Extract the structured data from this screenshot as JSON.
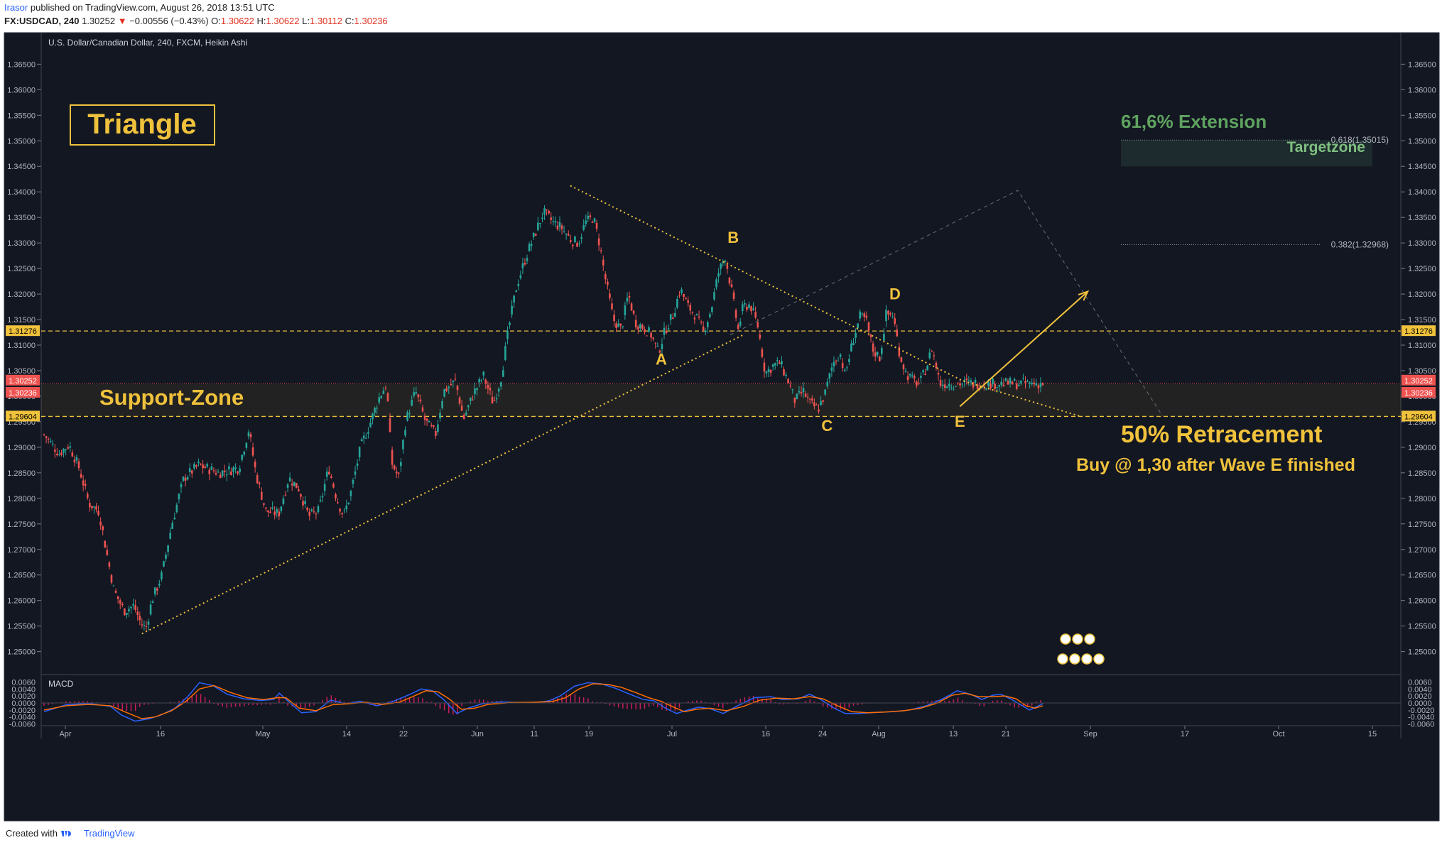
{
  "header": {
    "author": "Irasor",
    "published_text": "published on TradingView.com, August 26, 2018 13:51 UTC",
    "symbol": "FX:USDCAD, 240",
    "last": "1.30252",
    "change": "−0.00556 (−0.43%)",
    "ohlc": {
      "o_label": "O:",
      "o": "1.30622",
      "h_label": "H:",
      "h": "1.30622",
      "l_label": "L:",
      "l": "1.30112",
      "c_label": "C:",
      "c": "1.30236"
    }
  },
  "chart_data": {
    "type": "candlestick",
    "subtitle": "U.S. Dollar/Canadian Dollar, 240, FXCM, Heikin Ashi",
    "x_labels": [
      "Apr",
      "16",
      "May",
      "14",
      "22",
      "Jun",
      "11",
      "19",
      "Jul",
      "16",
      "24",
      "Aug",
      "13",
      "21",
      "Sep",
      "17",
      "Oct",
      "15"
    ],
    "y_ticks": [
      "1.36500",
      "1.36000",
      "1.35500",
      "1.35000",
      "1.34500",
      "1.34000",
      "1.33500",
      "1.33000",
      "1.32500",
      "1.32000",
      "1.31500",
      "1.31000",
      "1.30500",
      "1.30000",
      "1.29500",
      "1.29000",
      "1.28500",
      "1.28000",
      "1.27500",
      "1.27000",
      "1.26500",
      "1.26000",
      "1.25500",
      "1.25000"
    ],
    "ylim": [
      1.2455,
      1.3695
    ],
    "price_badges": {
      "resistance": "1.31276",
      "last": "1.30252",
      "close": "1.30236",
      "support": "1.29604"
    },
    "fib_levels": [
      {
        "label": "0.618(1.35015)",
        "value": 1.35015
      },
      {
        "label": "0.382(1.32968)",
        "value": 1.32968
      }
    ],
    "path_points": [
      [
        0,
        1.2925
      ],
      [
        0.015,
        1.2888
      ],
      [
        0.025,
        1.2905
      ],
      [
        0.035,
        1.286
      ],
      [
        0.045,
        1.279
      ],
      [
        0.055,
        1.2775
      ],
      [
        0.062,
        1.27
      ],
      [
        0.07,
        1.262
      ],
      [
        0.08,
        1.258
      ],
      [
        0.09,
        1.259
      ],
      [
        0.097,
        1.2555
      ],
      [
        0.102,
        1.2545
      ],
      [
        0.108,
        1.26
      ],
      [
        0.118,
        1.265
      ],
      [
        0.128,
        1.275
      ],
      [
        0.14,
        1.284
      ],
      [
        0.155,
        1.2865
      ],
      [
        0.175,
        1.285
      ],
      [
        0.195,
        1.286
      ],
      [
        0.205,
        1.2935
      ],
      [
        0.212,
        1.285
      ],
      [
        0.222,
        1.2775
      ],
      [
        0.235,
        1.277
      ],
      [
        0.245,
        1.284
      ],
      [
        0.255,
        1.282
      ],
      [
        0.265,
        1.2765
      ],
      [
        0.275,
        1.2775
      ],
      [
        0.285,
        1.286
      ],
      [
        0.293,
        1.28
      ],
      [
        0.3,
        1.2765
      ],
      [
        0.307,
        1.281
      ],
      [
        0.317,
        1.29
      ],
      [
        0.327,
        1.295
      ],
      [
        0.335,
        1.2995
      ],
      [
        0.343,
        1.3025
      ],
      [
        0.348,
        1.287
      ],
      [
        0.355,
        1.284
      ],
      [
        0.362,
        1.295
      ],
      [
        0.372,
        1.301
      ],
      [
        0.382,
        1.295
      ],
      [
        0.392,
        1.2925
      ],
      [
        0.4,
        1.301
      ],
      [
        0.412,
        1.303
      ],
      [
        0.42,
        1.2955
      ],
      [
        0.43,
        1.3005
      ],
      [
        0.44,
        1.304
      ],
      [
        0.45,
        1.2985
      ],
      [
        0.458,
        1.304
      ],
      [
        0.465,
        1.313
      ],
      [
        0.473,
        1.3215
      ],
      [
        0.482,
        1.327
      ],
      [
        0.492,
        1.332
      ],
      [
        0.5,
        1.336
      ],
      [
        0.51,
        1.334
      ],
      [
        0.518,
        1.333
      ],
      [
        0.528,
        1.3305
      ],
      [
        0.535,
        1.33
      ],
      [
        0.542,
        1.334
      ],
      [
        0.55,
        1.335
      ],
      [
        0.556,
        1.33
      ],
      [
        0.562,
        1.323
      ],
      [
        0.57,
        1.315
      ],
      [
        0.578,
        1.313
      ],
      [
        0.585,
        1.32
      ],
      [
        0.592,
        1.3145
      ],
      [
        0.6,
        1.3135
      ],
      [
        0.608,
        1.312
      ],
      [
        0.615,
        1.3085
      ],
      [
        0.622,
        1.313
      ],
      [
        0.63,
        1.316
      ],
      [
        0.637,
        1.321
      ],
      [
        0.645,
        1.3175
      ],
      [
        0.652,
        1.316
      ],
      [
        0.66,
        1.3125
      ],
      [
        0.668,
        1.317
      ],
      [
        0.675,
        1.324
      ],
      [
        0.682,
        1.3275
      ],
      [
        0.688,
        1.321
      ],
      [
        0.695,
        1.313
      ],
      [
        0.7,
        1.3175
      ],
      [
        0.707,
        1.318
      ],
      [
        0.715,
        1.3135
      ],
      [
        0.722,
        1.3045
      ],
      [
        0.73,
        1.306
      ],
      [
        0.737,
        1.3065
      ],
      [
        0.745,
        1.303
      ],
      [
        0.752,
        1.299
      ],
      [
        0.76,
        1.301
      ],
      [
        0.767,
        1.2985
      ],
      [
        0.775,
        1.2975
      ],
      [
        0.782,
        1.3005
      ],
      [
        0.79,
        1.3065
      ],
      [
        0.797,
        1.3085
      ],
      [
        0.802,
        1.304
      ],
      [
        0.81,
        1.311
      ],
      [
        0.817,
        1.3155
      ],
      [
        0.823,
        1.315
      ],
      [
        0.83,
        1.309
      ],
      [
        0.837,
        1.3075
      ],
      [
        0.843,
        1.316
      ],
      [
        0.85,
        1.316
      ],
      [
        0.857,
        1.308
      ],
      [
        0.863,
        1.3045
      ],
      [
        0.87,
        1.303
      ],
      [
        0.877,
        1.3025
      ],
      [
        0.884,
        1.306
      ],
      [
        0.889,
        1.3095
      ],
      [
        0.893,
        1.306
      ],
      [
        0.897,
        1.3025
      ]
    ],
    "annotations": {
      "title_box": "Triangle",
      "support_zone": "Support-Zone",
      "extension": "61,6% Extension",
      "targetzone": "Targetzone",
      "retracement": "50% Retracement",
      "buy_note": "Buy @ 1,30 after Wave E finished",
      "waves": [
        {
          "label": "A",
          "x": 0.618,
          "y": 1.3062
        },
        {
          "label": "B",
          "x": 0.69,
          "y": 1.33
        },
        {
          "label": "C",
          "x": 0.784,
          "y": 1.2932
        },
        {
          "label": "D",
          "x": 0.852,
          "y": 1.319
        },
        {
          "label": "E",
          "x": 0.917,
          "y": 1.294
        }
      ],
      "triangle_lines": {
        "lower": [
          [
            0.098,
            1.2535
          ],
          [
            0.7,
            1.312
          ]
        ],
        "upper": [
          [
            0.527,
            1.3412
          ],
          [
            0.92,
            1.303
          ],
          [
            1.037,
            1.2961
          ]
        ]
      },
      "projection": {
        "from": [
          0.687,
          1.312
        ],
        "peak": [
          0.975,
          1.3403
        ],
        "to": [
          1.12,
          1.2961
        ]
      },
      "arrow": {
        "from": [
          0.917,
          1.298
        ],
        "to": [
          1.045,
          1.3205
        ]
      }
    },
    "macd": {
      "label": "MACD",
      "y_ticks": [
        "0.0060",
        "0.0040",
        "0.0020",
        "0.0000",
        "-0.0020",
        "-0.0040",
        "-0.0060"
      ],
      "ylim": [
        -0.0065,
        0.0065
      ],
      "macd_points": [
        [
          0,
          -0.0025
        ],
        [
          0.02,
          -0.0005
        ],
        [
          0.04,
          -0.0001
        ],
        [
          0.06,
          -0.001
        ],
        [
          0.07,
          -0.0035
        ],
        [
          0.082,
          -0.0052
        ],
        [
          0.095,
          -0.0045
        ],
        [
          0.105,
          -0.0035
        ],
        [
          0.118,
          -0.0015
        ],
        [
          0.13,
          0.002
        ],
        [
          0.14,
          0.0058
        ],
        [
          0.152,
          0.005
        ],
        [
          0.165,
          0.0025
        ],
        [
          0.18,
          0.0012
        ],
        [
          0.195,
          0.0007
        ],
        [
          0.207,
          0.001
        ],
        [
          0.212,
          0.0028
        ],
        [
          0.22,
          0.0005
        ],
        [
          0.232,
          -0.0028
        ],
        [
          0.245,
          -0.0025
        ],
        [
          0.258,
          0.0008
        ],
        [
          0.272,
          -0.0002
        ],
        [
          0.285,
          0.0005
        ],
        [
          0.3,
          -0.0008
        ],
        [
          0.315,
          0.0005
        ],
        [
          0.33,
          0.0025
        ],
        [
          0.34,
          0.004
        ],
        [
          0.35,
          0.0035
        ],
        [
          0.36,
          0.001
        ],
        [
          0.372,
          -0.003
        ],
        [
          0.382,
          -0.0015
        ],
        [
          0.395,
          -0.0002
        ],
        [
          0.412,
          0.0003
        ],
        [
          0.43,
          0.0001
        ],
        [
          0.445,
          0.0002
        ],
        [
          0.455,
          0.0006
        ],
        [
          0.465,
          0.002
        ],
        [
          0.478,
          0.0048
        ],
        [
          0.49,
          0.0058
        ],
        [
          0.502,
          0.0055
        ],
        [
          0.515,
          0.0042
        ],
        [
          0.528,
          0.0025
        ],
        [
          0.54,
          0.001
        ],
        [
          0.55,
          0.0006
        ],
        [
          0.56,
          -0.0015
        ],
        [
          0.57,
          -0.003
        ],
        [
          0.58,
          -0.002
        ],
        [
          0.59,
          -0.0012
        ],
        [
          0.6,
          -0.0016
        ],
        [
          0.612,
          -0.003
        ],
        [
          0.625,
          -0.0008
        ],
        [
          0.64,
          0.0015
        ],
        [
          0.655,
          0.0018
        ],
        [
          0.665,
          0.001
        ],
        [
          0.68,
          0.0012
        ],
        [
          0.69,
          0.0025
        ],
        [
          0.7,
          0.001
        ],
        [
          0.712,
          -0.0015
        ],
        [
          0.722,
          -0.003
        ],
        [
          0.735,
          -0.003
        ],
        [
          0.75,
          -0.0027
        ],
        [
          0.765,
          -0.0025
        ],
        [
          0.78,
          -0.002
        ],
        [
          0.795,
          -0.0008
        ],
        [
          0.81,
          0.0012
        ],
        [
          0.823,
          0.0035
        ],
        [
          0.835,
          0.0025
        ],
        [
          0.845,
          0.001
        ],
        [
          0.855,
          0.0022
        ],
        [
          0.862,
          0.0025
        ],
        [
          0.872,
          0.001
        ],
        [
          0.88,
          -0.0005
        ],
        [
          0.888,
          -0.002
        ],
        [
          0.895,
          -0.001
        ],
        [
          0.9,
          -0.0002
        ]
      ],
      "signal_points": [
        [
          0,
          -0.002
        ],
        [
          0.02,
          -0.0008
        ],
        [
          0.04,
          -0.0004
        ],
        [
          0.06,
          -0.0008
        ],
        [
          0.075,
          -0.0028
        ],
        [
          0.088,
          -0.0045
        ],
        [
          0.1,
          -0.004
        ],
        [
          0.115,
          -0.0022
        ],
        [
          0.128,
          0.0005
        ],
        [
          0.14,
          0.004
        ],
        [
          0.153,
          0.005
        ],
        [
          0.168,
          0.003
        ],
        [
          0.183,
          0.0015
        ],
        [
          0.198,
          0.001
        ],
        [
          0.21,
          0.0015
        ],
        [
          0.218,
          0.0015
        ],
        [
          0.23,
          -0.0015
        ],
        [
          0.245,
          -0.0022
        ],
        [
          0.26,
          -0.0005
        ],
        [
          0.275,
          -0.0002
        ],
        [
          0.29,
          0.0002
        ],
        [
          0.305,
          -0.0004
        ],
        [
          0.32,
          0.0002
        ],
        [
          0.332,
          0.0018
        ],
        [
          0.344,
          0.0035
        ],
        [
          0.355,
          0.0032
        ],
        [
          0.365,
          0.0012
        ],
        [
          0.376,
          -0.0018
        ],
        [
          0.388,
          -0.0015
        ],
        [
          0.4,
          -0.0004
        ],
        [
          0.42,
          0.0001
        ],
        [
          0.44,
          0.0002
        ],
        [
          0.458,
          0.0004
        ],
        [
          0.47,
          0.0015
        ],
        [
          0.482,
          0.004
        ],
        [
          0.495,
          0.0055
        ],
        [
          0.508,
          0.0053
        ],
        [
          0.52,
          0.0045
        ],
        [
          0.533,
          0.003
        ],
        [
          0.545,
          0.0015
        ],
        [
          0.556,
          0.0005
        ],
        [
          0.566,
          -0.001
        ],
        [
          0.577,
          -0.0025
        ],
        [
          0.588,
          -0.0018
        ],
        [
          0.6,
          -0.0015
        ],
        [
          0.615,
          -0.0022
        ],
        [
          0.63,
          -0.001
        ],
        [
          0.645,
          0.0008
        ],
        [
          0.66,
          0.0014
        ],
        [
          0.675,
          0.0012
        ],
        [
          0.69,
          0.0018
        ],
        [
          0.702,
          0.0012
        ],
        [
          0.715,
          -0.0008
        ],
        [
          0.728,
          -0.0025
        ],
        [
          0.742,
          -0.0028
        ],
        [
          0.758,
          -0.0026
        ],
        [
          0.775,
          -0.0022
        ],
        [
          0.79,
          -0.0015
        ],
        [
          0.805,
          0.0
        ],
        [
          0.818,
          0.0022
        ],
        [
          0.83,
          0.0028
        ],
        [
          0.842,
          0.0018
        ],
        [
          0.855,
          0.0018
        ],
        [
          0.866,
          0.002
        ],
        [
          0.876,
          0.0012
        ],
        [
          0.885,
          -0.0008
        ],
        [
          0.893,
          -0.0015
        ],
        [
          0.9,
          -0.0008
        ]
      ]
    }
  },
  "footer": {
    "created": "Created with",
    "brand": "TradingView"
  }
}
